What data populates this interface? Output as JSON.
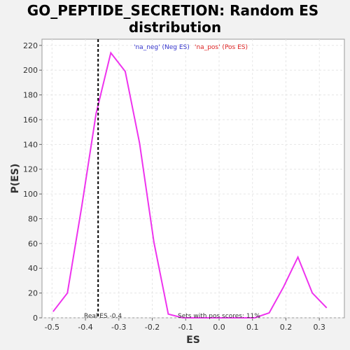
{
  "chart_data": {
    "type": "line",
    "title_lines": [
      "GO_PEPTIDE_SECRETION: Random ES",
      "distribution"
    ],
    "xlabel": "ES",
    "ylabel": "P(ES)",
    "xlim": [
      -0.53,
      0.375
    ],
    "ylim": [
      0,
      225
    ],
    "xticks": [
      -0.5,
      -0.4,
      -0.3,
      -0.2,
      -0.1,
      0.0,
      0.1,
      0.2,
      0.3
    ],
    "xtick_labels": [
      "-0.5",
      "-0.4",
      "-0.3",
      "-0.2",
      "-0.1",
      "0.0",
      "0.1",
      "0.2",
      "0.3"
    ],
    "yticks": [
      0,
      20,
      40,
      60,
      80,
      100,
      120,
      140,
      160,
      180,
      200,
      220
    ],
    "ytick_labels": [
      "0",
      "20",
      "40",
      "60",
      "80",
      "100",
      "120",
      "140",
      "160",
      "180",
      "200",
      "220"
    ],
    "grid": true,
    "legend_placement": "top-center",
    "legend": [
      {
        "label": "'na_neg' (Neg ES)",
        "color": "#3333cc"
      },
      {
        "label": "'na_pos' (Pos ES)",
        "color": "#dd2222"
      }
    ],
    "series": [
      {
        "color": "#ee33ee",
        "x": [
          -0.497,
          -0.454,
          -0.411,
          -0.368,
          -0.324,
          -0.281,
          -0.238,
          -0.195,
          -0.152,
          -0.109,
          -0.066,
          -0.023,
          0.02,
          0.064,
          0.107,
          0.15,
          0.193,
          0.236,
          0.279,
          0.322
        ],
        "y": [
          5,
          20,
          90,
          165,
          214,
          199,
          141,
          61,
          3,
          0,
          0,
          0,
          0,
          0,
          0,
          4,
          25,
          49,
          20,
          8
        ]
      }
    ],
    "reference_line": {
      "x": -0.362,
      "color": "#000000",
      "style": "dashed"
    },
    "annotations": {
      "real_es": "Real ES -0.4",
      "pos_scores": "Sets with pos scores: 11%"
    }
  }
}
